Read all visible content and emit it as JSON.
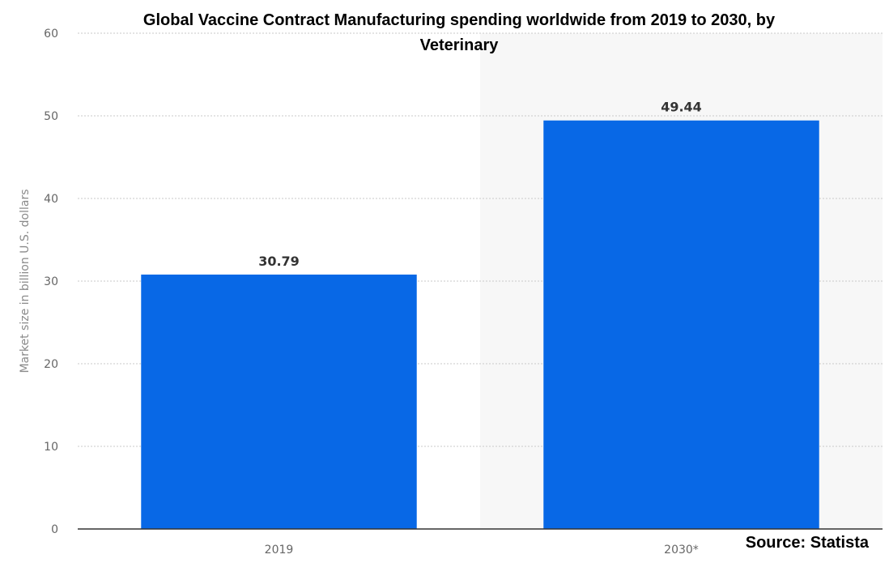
{
  "chart_data": {
    "type": "bar",
    "title_lines": [
      "Global Vaccine Contract Manufacturing spending worldwide from 2019 to 2030, by",
      "Veterinary"
    ],
    "categories": [
      "2019",
      "2030*"
    ],
    "values": [
      30.79,
      49.44
    ],
    "value_labels": [
      "30.79",
      "49.44"
    ],
    "ylabel": "Market size in billion U.S. dollars",
    "xlabel": "",
    "ylim": [
      0,
      60
    ],
    "yticks": [
      0,
      10,
      20,
      30,
      40,
      50,
      60
    ],
    "grid": true,
    "forecast_shaded_from_category": 1,
    "bar_color": "#0868e6",
    "source": "Source: Statista"
  }
}
